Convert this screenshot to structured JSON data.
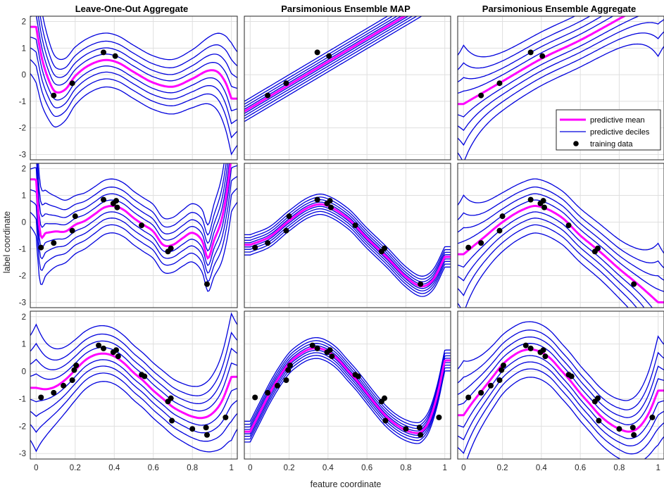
{
  "figure": {
    "column_titles": [
      "Leave-One-Out Aggregate",
      "Parsimonious Ensemble MAP",
      "Parsimonious Ensemble Aggregate"
    ],
    "xlabel": "feature coordinate",
    "ylabel": "label coordinate",
    "legend": {
      "placement": "inside lower-right of top-right panel",
      "entries": [
        "predictive mean",
        "predictive deciles",
        "training data"
      ]
    },
    "colors": {
      "mean": "#ff00ff",
      "deciles": "#0000dd",
      "points": "#000000",
      "grid": "#dfdfdf"
    }
  },
  "chart_data": {
    "type": "line",
    "layout": "3x3 grid of panels; rows share training data, columns share method",
    "xlim": [
      -0.03,
      1.03
    ],
    "ylim": [
      -3.2,
      2.2
    ],
    "xticks": [
      0,
      0.2,
      0.4,
      0.6,
      0.8,
      1
    ],
    "xtick_labels": [
      "0",
      "0.2",
      "0.4",
      "0.6",
      "0.8",
      "1"
    ],
    "yticks": [
      -3,
      -2,
      -1,
      0,
      1,
      2
    ],
    "ytick_labels": [
      "-3",
      "-2",
      "-1",
      "0",
      "1",
      "2"
    ],
    "grid": true,
    "rows": [
      {
        "training_data": [
          [
            0.09,
            -0.78
          ],
          [
            0.185,
            -0.32
          ],
          [
            0.345,
            0.84
          ],
          [
            0.405,
            0.7
          ]
        ],
        "panels": [
          {
            "mean": [
              [
                0.0,
                1.8
              ],
              [
                0.03,
                0.6
              ],
              [
                0.07,
                -0.3
              ],
              [
                0.1,
                -0.65
              ],
              [
                0.15,
                -0.55
              ],
              [
                0.2,
                -0.05
              ],
              [
                0.27,
                0.35
              ],
              [
                0.35,
                0.55
              ],
              [
                0.42,
                0.45
              ],
              [
                0.5,
                0.1
              ],
              [
                0.6,
                -0.3
              ],
              [
                0.7,
                -0.45
              ],
              [
                0.8,
                -0.15
              ],
              [
                0.88,
                0.15
              ],
              [
                0.93,
                0.1
              ],
              [
                0.97,
                -0.3
              ],
              [
                1.0,
                -0.9
              ]
            ],
            "decile_offsets": [
              -1.0,
              -0.7,
              -0.45,
              -0.22,
              0.22,
              0.45,
              0.7,
              1.0
            ],
            "decile_spread": 0.5
          },
          {
            "mean": [
              [
                0.0,
                -1.25
              ],
              [
                1.0,
                3.1
              ]
            ],
            "decile_offsets": [
              -0.38,
              -0.27,
              -0.17,
              -0.08,
              0.08,
              0.17,
              0.27,
              0.38
            ]
          },
          {
            "mean": [
              [
                0.0,
                -1.1
              ],
              [
                0.2,
                -0.25
              ],
              [
                0.4,
                0.6
              ],
              [
                0.6,
                1.3
              ],
              [
                0.8,
                2.1
              ],
              [
                1.0,
                2.9
              ]
            ],
            "decile_offsets": [
              -1.0,
              -0.7,
              -0.45,
              -0.22,
              0.22,
              0.45,
              0.7,
              1.0
            ],
            "decile_spread": 0.55
          }
        ]
      },
      {
        "training_data": [
          [
            0.025,
            -0.95
          ],
          [
            0.09,
            -0.78
          ],
          [
            0.185,
            -0.32
          ],
          [
            0.2,
            0.22
          ],
          [
            0.345,
            0.84
          ],
          [
            0.395,
            0.7
          ],
          [
            0.41,
            0.8
          ],
          [
            0.415,
            0.55
          ],
          [
            0.54,
            -0.12
          ],
          [
            0.675,
            -1.1
          ],
          [
            0.69,
            -0.98
          ],
          [
            0.875,
            -2.32
          ]
        ],
        "panels": [
          {
            "mean": [
              [
                0.0,
                1.6
              ],
              [
                0.02,
                -0.4
              ],
              [
                0.05,
                -0.4
              ],
              [
                0.1,
                -0.35
              ],
              [
                0.15,
                -0.35
              ],
              [
                0.2,
                -0.1
              ],
              [
                0.25,
                0.05
              ],
              [
                0.3,
                0.3
              ],
              [
                0.35,
                0.55
              ],
              [
                0.4,
                0.6
              ],
              [
                0.45,
                0.45
              ],
              [
                0.5,
                0.15
              ],
              [
                0.55,
                -0.1
              ],
              [
                0.6,
                -0.35
              ],
              [
                0.65,
                -0.85
              ],
              [
                0.7,
                -0.85
              ],
              [
                0.75,
                -0.6
              ],
              [
                0.8,
                -0.4
              ],
              [
                0.85,
                -0.7
              ],
              [
                0.88,
                -1.35
              ],
              [
                0.91,
                -0.7
              ],
              [
                0.95,
                0.1
              ],
              [
                0.98,
                1.3
              ],
              [
                1.0,
                2.5
              ]
            ],
            "decile_offsets": [
              -1.0,
              -0.7,
              -0.45,
              -0.22,
              0.22,
              0.45,
              0.7,
              1.0
            ],
            "decile_spread": 0.5
          },
          {
            "mean": [
              [
                0.0,
                -0.85
              ],
              [
                0.1,
                -0.55
              ],
              [
                0.2,
                0.05
              ],
              [
                0.3,
                0.55
              ],
              [
                0.38,
                0.65
              ],
              [
                0.5,
                0.15
              ],
              [
                0.6,
                -0.6
              ],
              [
                0.7,
                -1.3
              ],
              [
                0.8,
                -2.05
              ],
              [
                0.88,
                -2.4
              ],
              [
                0.94,
                -2.15
              ],
              [
                1.0,
                -1.3
              ]
            ],
            "decile_offsets": [
              -0.38,
              -0.27,
              -0.17,
              -0.08,
              0.08,
              0.17,
              0.27,
              0.38
            ]
          },
          {
            "mean": [
              [
                0.0,
                -1.2
              ],
              [
                0.1,
                -0.6
              ],
              [
                0.2,
                0.0
              ],
              [
                0.3,
                0.45
              ],
              [
                0.38,
                0.6
              ],
              [
                0.5,
                0.2
              ],
              [
                0.6,
                -0.5
              ],
              [
                0.7,
                -1.1
              ],
              [
                0.8,
                -1.75
              ],
              [
                0.9,
                -2.35
              ],
              [
                1.0,
                -3.0
              ]
            ],
            "decile_offsets": [
              -1.0,
              -0.7,
              -0.45,
              -0.22,
              0.22,
              0.45,
              0.7,
              1.0
            ],
            "decile_spread": 0.55
          }
        ]
      },
      {
        "training_data": [
          [
            0.025,
            -0.95
          ],
          [
            0.09,
            -0.78
          ],
          [
            0.14,
            -0.52
          ],
          [
            0.185,
            -0.32
          ],
          [
            0.195,
            0.05
          ],
          [
            0.205,
            0.22
          ],
          [
            0.32,
            0.95
          ],
          [
            0.345,
            0.84
          ],
          [
            0.395,
            0.7
          ],
          [
            0.41,
            0.78
          ],
          [
            0.42,
            0.55
          ],
          [
            0.54,
            -0.12
          ],
          [
            0.555,
            -0.18
          ],
          [
            0.675,
            -1.1
          ],
          [
            0.69,
            -0.98
          ],
          [
            0.695,
            -1.8
          ],
          [
            0.8,
            -2.1
          ],
          [
            0.87,
            -2.05
          ],
          [
            0.875,
            -2.32
          ],
          [
            0.97,
            -1.68
          ]
        ],
        "panels": [
          {
            "mean": [
              [
                0.0,
                -0.6
              ],
              [
                0.05,
                -0.65
              ],
              [
                0.1,
                -0.55
              ],
              [
                0.15,
                -0.3
              ],
              [
                0.2,
                0.05
              ],
              [
                0.25,
                0.4
              ],
              [
                0.3,
                0.6
              ],
              [
                0.35,
                0.65
              ],
              [
                0.4,
                0.55
              ],
              [
                0.45,
                0.3
              ],
              [
                0.5,
                -0.05
              ],
              [
                0.55,
                -0.35
              ],
              [
                0.6,
                -0.7
              ],
              [
                0.65,
                -1.0
              ],
              [
                0.7,
                -1.3
              ],
              [
                0.75,
                -1.5
              ],
              [
                0.8,
                -1.65
              ],
              [
                0.85,
                -1.7
              ],
              [
                0.9,
                -1.55
              ],
              [
                0.95,
                -1.1
              ],
              [
                1.0,
                -0.2
              ]
            ],
            "decile_offsets": [
              -1.0,
              -0.7,
              -0.45,
              -0.22,
              0.22,
              0.45,
              0.7,
              1.0
            ],
            "decile_spread": 0.6
          },
          {
            "mean": [
              [
                0.0,
                -2.2
              ],
              [
                0.05,
                -1.5
              ],
              [
                0.1,
                -0.8
              ],
              [
                0.15,
                -0.2
              ],
              [
                0.2,
                0.3
              ],
              [
                0.25,
                0.6
              ],
              [
                0.3,
                0.8
              ],
              [
                0.35,
                0.85
              ],
              [
                0.4,
                0.72
              ],
              [
                0.45,
                0.45
              ],
              [
                0.5,
                0.05
              ],
              [
                0.55,
                -0.35
              ],
              [
                0.6,
                -0.8
              ],
              [
                0.65,
                -1.25
              ],
              [
                0.7,
                -1.65
              ],
              [
                0.75,
                -1.95
              ],
              [
                0.8,
                -2.15
              ],
              [
                0.85,
                -2.25
              ],
              [
                0.88,
                -2.2
              ],
              [
                0.92,
                -1.8
              ],
              [
                0.96,
                -0.9
              ],
              [
                1.0,
                0.4
              ]
            ],
            "decile_offsets": [
              -0.38,
              -0.27,
              -0.17,
              -0.08,
              0.08,
              0.17,
              0.27,
              0.38
            ]
          },
          {
            "mean": [
              [
                0.0,
                -1.6
              ],
              [
                0.05,
                -1.1
              ],
              [
                0.1,
                -0.65
              ],
              [
                0.15,
                -0.2
              ],
              [
                0.2,
                0.25
              ],
              [
                0.25,
                0.55
              ],
              [
                0.3,
                0.75
              ],
              [
                0.35,
                0.8
              ],
              [
                0.4,
                0.7
              ],
              [
                0.45,
                0.45
              ],
              [
                0.5,
                0.05
              ],
              [
                0.55,
                -0.35
              ],
              [
                0.6,
                -0.8
              ],
              [
                0.65,
                -1.2
              ],
              [
                0.7,
                -1.6
              ],
              [
                0.75,
                -1.9
              ],
              [
                0.8,
                -2.1
              ],
              [
                0.85,
                -2.2
              ],
              [
                0.9,
                -2.05
              ],
              [
                0.95,
                -1.55
              ],
              [
                1.0,
                -0.7
              ]
            ],
            "decile_offsets": [
              -1.0,
              -0.7,
              -0.45,
              -0.22,
              0.22,
              0.45,
              0.7,
              1.0
            ],
            "decile_spread": 0.45
          }
        ]
      }
    ]
  }
}
